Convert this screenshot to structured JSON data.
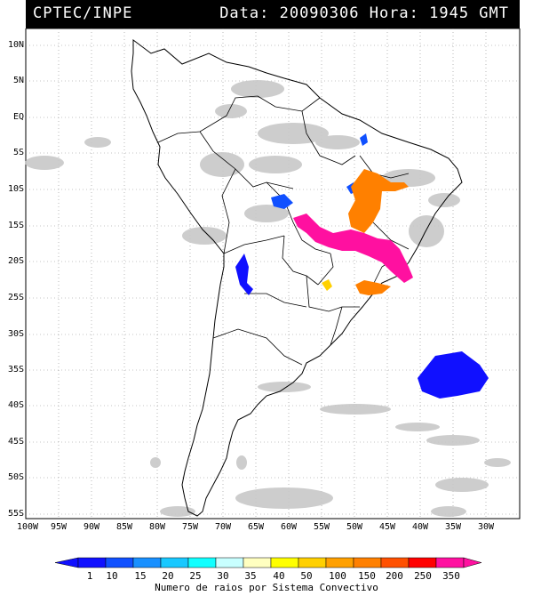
{
  "header": {
    "source": "CPTEC/INPE",
    "datetime": "Data: 20090306 Hora: 1945 GMT"
  },
  "map": {
    "lat_labels": [
      "10N",
      "5N",
      "EQ",
      "5S",
      "10S",
      "15S",
      "20S",
      "25S",
      "30S",
      "35S",
      "40S",
      "45S",
      "50S",
      "55S"
    ],
    "lon_labels": [
      "100W",
      "95W",
      "90W",
      "85W",
      "80W",
      "75W",
      "70W",
      "65W",
      "60W",
      "55W",
      "50W",
      "45W",
      "40W",
      "35W",
      "30W"
    ],
    "colors": {
      "cloud": "#c8c8c8",
      "grid": "#8c8c8c",
      "border": "#000000"
    }
  },
  "colorbar": {
    "labels": [
      "1",
      "10",
      "15",
      "20",
      "25",
      "30",
      "35",
      "40",
      "50",
      "100",
      "150",
      "200",
      "250",
      "350"
    ],
    "colors": [
      "#1010ff",
      "#1050ff",
      "#1890ff",
      "#18c8ff",
      "#10ffff",
      "#c8ffff",
      "#ffffc0",
      "#ffff00",
      "#ffd000",
      "#ffa000",
      "#ff8000",
      "#ff5000",
      "#ff0000",
      "#ff10a0"
    ],
    "title": "Numero de raios por Sistema Convectivo"
  }
}
